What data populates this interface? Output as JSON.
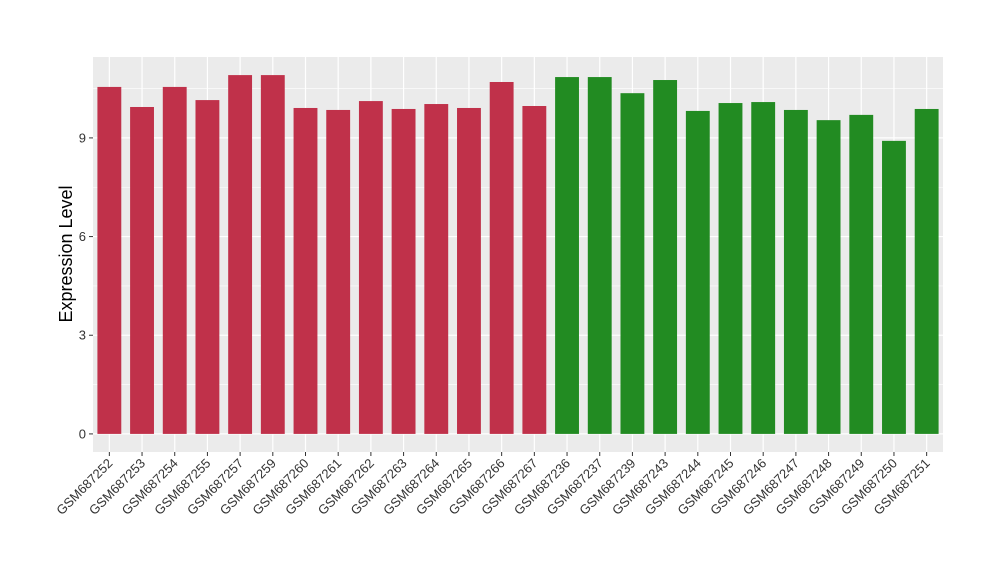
{
  "chart_data": {
    "type": "bar",
    "title": "",
    "xlabel": "",
    "ylabel": "Expression Level",
    "ylim": [
      -0.55,
      11.46
    ],
    "yticks": [
      0,
      3,
      6,
      9
    ],
    "grid": true,
    "categories": [
      "GSM687252",
      "GSM687253",
      "GSM687254",
      "GSM687255",
      "GSM687257",
      "GSM687259",
      "GSM687260",
      "GSM687261",
      "GSM687262",
      "GSM687263",
      "GSM687264",
      "GSM687265",
      "GSM687266",
      "GSM687267",
      "GSM687236",
      "GSM687237",
      "GSM687239",
      "GSM687243",
      "GSM687244",
      "GSM687245",
      "GSM687246",
      "GSM687247",
      "GSM687248",
      "GSM687249",
      "GSM687250",
      "GSM687251"
    ],
    "values": [
      10.55,
      9.94,
      10.55,
      10.15,
      10.91,
      10.91,
      9.91,
      9.85,
      10.12,
      9.88,
      10.03,
      9.91,
      10.7,
      9.97,
      10.85,
      10.85,
      10.36,
      10.76,
      9.82,
      10.06,
      10.09,
      9.85,
      9.54,
      9.7,
      8.91,
      9.88
    ],
    "groups": [
      0,
      0,
      0,
      0,
      0,
      0,
      0,
      0,
      0,
      0,
      0,
      0,
      0,
      0,
      1,
      1,
      1,
      1,
      1,
      1,
      1,
      1,
      1,
      1,
      1,
      1
    ],
    "colors": [
      "#C0314A",
      "#228B22"
    ]
  }
}
